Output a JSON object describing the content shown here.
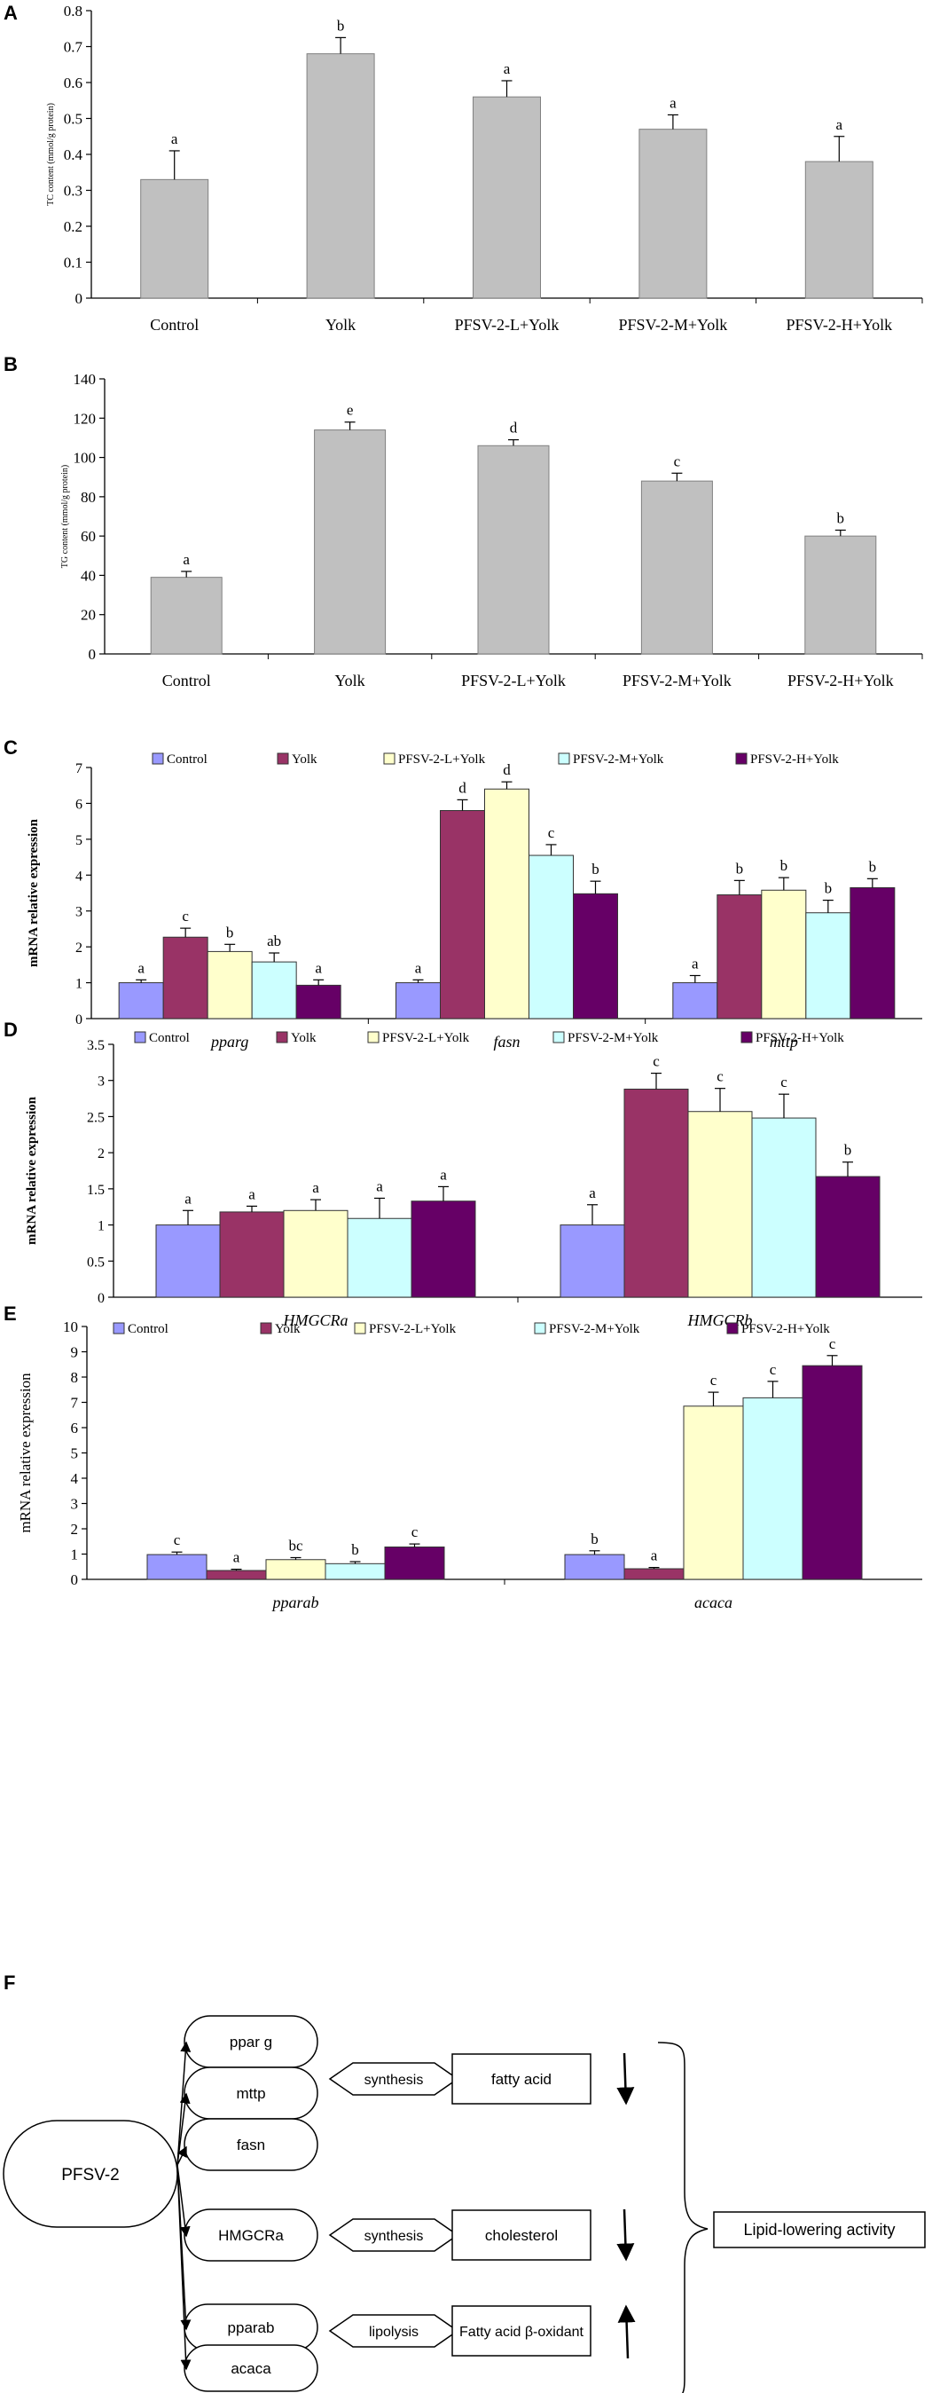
{
  "colors": {
    "gray_bar": "#c0c0c0",
    "control": "#9999ff",
    "yolk": "#993366",
    "low": "#ffffcc",
    "mid": "#ccffff",
    "high": "#660066"
  },
  "panels": {
    "A": {
      "letter": "A"
    },
    "B": {
      "letter": "B"
    },
    "C": {
      "letter": "C"
    },
    "D": {
      "letter": "D"
    },
    "E": {
      "letter": "E"
    },
    "F": {
      "letter": "F"
    }
  },
  "chart_data": [
    {
      "id": "A",
      "type": "bar",
      "title": "",
      "ylabel": "TC content (mmol/g protein)",
      "xlabel": "",
      "ylim": [
        0,
        0.8
      ],
      "yticks": [
        "0",
        "0.1",
        "0.2",
        "0.3",
        "0.4",
        "0.5",
        "0.6",
        "0.7",
        "0.8"
      ],
      "categories": [
        "Control",
        "Yolk",
        "PFSV-2-L+Yolk",
        "PFSV-2-M+Yolk",
        "PFSV-2-H+Yolk"
      ],
      "values": [
        0.33,
        0.68,
        0.56,
        0.47,
        0.38
      ],
      "errors": [
        0.08,
        0.045,
        0.045,
        0.04,
        0.07
      ],
      "labels": [
        "a",
        "b",
        "a",
        "a",
        "a"
      ]
    },
    {
      "id": "B",
      "type": "bar",
      "title": "",
      "ylabel": "TG content (mmol/g protein)",
      "xlabel": "",
      "ylim": [
        0,
        140
      ],
      "yticks": [
        "0",
        "20",
        "40",
        "60",
        "80",
        "100",
        "120",
        "140"
      ],
      "categories": [
        "Control",
        "Yolk",
        "PFSV-2-L+Yolk",
        "PFSV-2-M+Yolk",
        "PFSV-2-H+Yolk"
      ],
      "values": [
        39,
        114,
        106,
        88,
        60
      ],
      "errors": [
        3,
        4,
        3,
        4,
        3
      ],
      "labels": [
        "a",
        "e",
        "d",
        "c",
        "b"
      ]
    },
    {
      "id": "C",
      "type": "bar",
      "ylabel": "mRNA relative expression",
      "ylim": [
        0,
        7
      ],
      "yticks": [
        "0",
        "1",
        "2",
        "3",
        "4",
        "5",
        "6",
        "7"
      ],
      "legend": [
        "Control",
        "Yolk",
        "PFSV-2-L+Yolk",
        "PFSV-2-M+Yolk",
        "PFSV-2-H+Yolk"
      ],
      "categories": [
        "pparg",
        "fasn",
        "mttp"
      ],
      "series": [
        {
          "name": "Control",
          "values": [
            1.0,
            1.0,
            1.0
          ],
          "errors": [
            0.08,
            0.08,
            0.2
          ],
          "labels": [
            "a",
            "a",
            "a"
          ]
        },
        {
          "name": "Yolk",
          "values": [
            2.27,
            5.8,
            3.45
          ],
          "errors": [
            0.25,
            0.3,
            0.4
          ],
          "labels": [
            "c",
            "d",
            "b"
          ]
        },
        {
          "name": "PFSV-2-L+Yolk",
          "values": [
            1.87,
            6.4,
            3.58
          ],
          "errors": [
            0.2,
            0.2,
            0.35
          ],
          "labels": [
            "b",
            "d",
            "b"
          ]
        },
        {
          "name": "PFSV-2-M+Yolk",
          "values": [
            1.58,
            4.55,
            2.95
          ],
          "errors": [
            0.25,
            0.3,
            0.35
          ],
          "labels": [
            "ab",
            "c",
            "b"
          ]
        },
        {
          "name": "PFSV-2-H+Yolk",
          "values": [
            0.93,
            3.48,
            3.65
          ],
          "errors": [
            0.15,
            0.35,
            0.25
          ],
          "labels": [
            "a",
            "b",
            "b"
          ]
        }
      ]
    },
    {
      "id": "D",
      "type": "bar",
      "ylabel": "mRNA relative expression",
      "ylim": [
        0,
        3.5
      ],
      "yticks": [
        "0",
        "0.5",
        "1",
        "1.5",
        "2",
        "2.5",
        "3",
        "3.5"
      ],
      "legend": [
        "Control",
        "Yolk",
        "PFSV-2-L+Yolk",
        "PFSV-2-M+Yolk",
        "PFSV-2-H+Yolk"
      ],
      "categories": [
        "HMGCRa",
        "HMGCRb"
      ],
      "series": [
        {
          "name": "Control",
          "values": [
            1.0,
            1.0
          ],
          "errors": [
            0.2,
            0.28
          ],
          "labels": [
            "a",
            "a"
          ]
        },
        {
          "name": "Yolk",
          "values": [
            1.18,
            2.88
          ],
          "errors": [
            0.08,
            0.22
          ],
          "labels": [
            "a",
            "c"
          ]
        },
        {
          "name": "PFSV-2-L+Yolk",
          "values": [
            1.2,
            2.57
          ],
          "errors": [
            0.15,
            0.32
          ],
          "labels": [
            "a",
            "c"
          ]
        },
        {
          "name": "PFSV-2-M+Yolk",
          "values": [
            1.09,
            2.48
          ],
          "errors": [
            0.28,
            0.33
          ],
          "labels": [
            "a",
            "c"
          ]
        },
        {
          "name": "PFSV-2-H+Yolk",
          "values": [
            1.33,
            1.67
          ],
          "errors": [
            0.2,
            0.2
          ],
          "labels": [
            "a",
            "b"
          ]
        }
      ]
    },
    {
      "id": "E",
      "type": "bar",
      "ylabel": "mRNA relative expression",
      "ylim": [
        0,
        10
      ],
      "yticks": [
        "0",
        "1",
        "2",
        "3",
        "4",
        "5",
        "6",
        "7",
        "8",
        "9",
        "10"
      ],
      "legend": [
        "Control",
        "Yolk",
        "PFSV-2-L+Yolk",
        "PFSV-2-M+Yolk",
        "PFSV-2-H+Yolk"
      ],
      "categories": [
        "pparab",
        "acaca"
      ],
      "series": [
        {
          "name": "Control",
          "values": [
            0.98,
            0.98
          ],
          "errors": [
            0.1,
            0.15
          ],
          "labels": [
            "c",
            "b"
          ]
        },
        {
          "name": "Yolk",
          "values": [
            0.35,
            0.42
          ],
          "errors": [
            0.05,
            0.05
          ],
          "labels": [
            "a",
            "a"
          ]
        },
        {
          "name": "PFSV-2-L+Yolk",
          "values": [
            0.78,
            6.85
          ],
          "errors": [
            0.08,
            0.55
          ],
          "labels": [
            "bc",
            "c"
          ]
        },
        {
          "name": "PFSV-2-M+Yolk",
          "values": [
            0.62,
            7.18
          ],
          "errors": [
            0.08,
            0.65
          ],
          "labels": [
            "b",
            "c"
          ]
        },
        {
          "name": "PFSV-2-H+Yolk",
          "values": [
            1.28,
            8.45
          ],
          "errors": [
            0.12,
            0.4
          ],
          "labels": [
            "c",
            "c"
          ]
        }
      ]
    }
  ],
  "diagram": {
    "source": "PFSV-2",
    "genes": [
      "ppar g",
      "mttp",
      "fasn",
      "HMGCRa",
      "pparab",
      "acaca"
    ],
    "processes": [
      {
        "action": "synthesis",
        "target": "fatty acid",
        "direction": "down"
      },
      {
        "action": "synthesis",
        "target": "cholesterol",
        "direction": "down"
      },
      {
        "action": "lipolysis",
        "target": "Fatty acid β-oxidant",
        "direction": "up"
      }
    ],
    "outcome": "Lipid-lowering activity"
  }
}
